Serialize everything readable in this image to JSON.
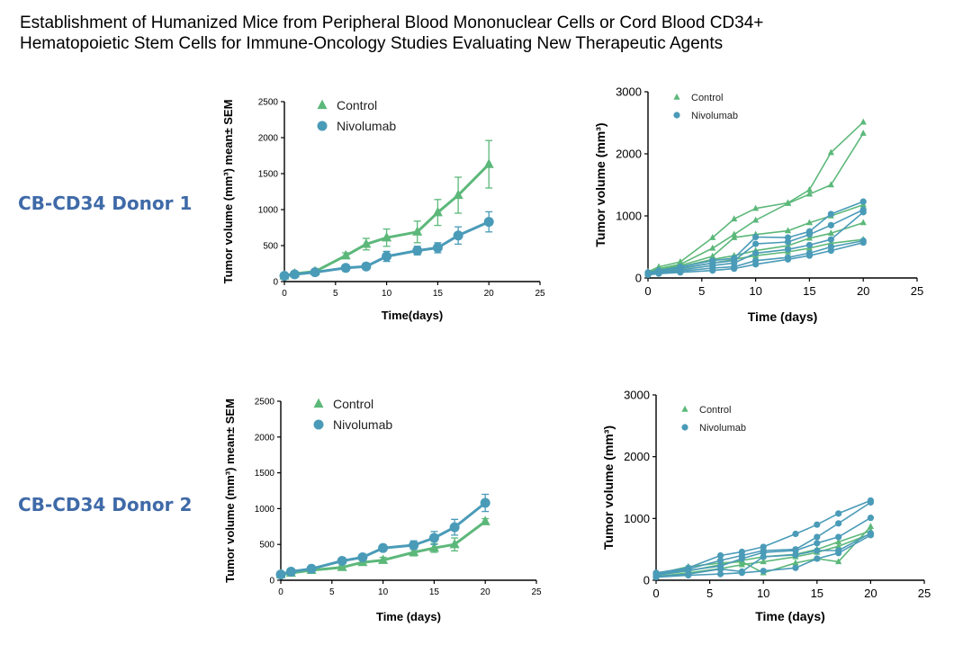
{
  "page": {
    "title_line1": "Establishment of Humanized Mice from Peripheral Blood Mononuclear Cells or Cord Blood CD34+",
    "title_line2": "Hematopoietic Stem Cells for Immune-Oncology Studies Evaluating New Therapeutic Agents",
    "donor1_label": "CB-CD34 Donor 1",
    "donor2_label": "CB-CD34 Donor 2"
  },
  "colors": {
    "control": "#5cb87a",
    "nivolumab": "#4a9bb8"
  },
  "chart_data": [
    {
      "id": "d1-mean",
      "type": "line",
      "title": "",
      "xlabel": "Time(days)",
      "ylabel": "Tumor volume (mm³) mean± SEM",
      "xlim": [
        0,
        25
      ],
      "ylim": [
        0,
        2500
      ],
      "xticks": [
        0,
        5,
        10,
        15,
        20,
        25
      ],
      "yticks": [
        0,
        500,
        1000,
        1500,
        2000,
        2500
      ],
      "legend_position": "top-left",
      "series": [
        {
          "name": "Control",
          "marker": "triangle",
          "x": [
            0,
            1,
            3,
            6,
            8,
            10,
            13,
            15,
            17,
            20
          ],
          "y": [
            80,
            110,
            140,
            360,
            520,
            610,
            690,
            960,
            1200,
            1630
          ],
          "err": [
            10,
            15,
            20,
            40,
            80,
            120,
            150,
            180,
            250,
            330
          ]
        },
        {
          "name": "Nivolumab",
          "marker": "circle",
          "x": [
            0,
            1,
            3,
            6,
            8,
            10,
            13,
            15,
            17,
            20
          ],
          "y": [
            80,
            100,
            130,
            190,
            210,
            350,
            430,
            470,
            640,
            830
          ],
          "err": [
            10,
            10,
            15,
            20,
            30,
            70,
            60,
            70,
            120,
            140
          ]
        }
      ]
    },
    {
      "id": "d1-indiv",
      "type": "line",
      "title": "",
      "xlabel": "Time  (days)",
      "ylabel": "Tumor volume (mm³)",
      "xlim": [
        0,
        25
      ],
      "ylim": [
        0,
        3000
      ],
      "xticks": [
        0,
        5,
        10,
        15,
        20,
        25
      ],
      "yticks": [
        0,
        1000,
        2000,
        3000
      ],
      "legend_position": "top-left",
      "series": [
        {
          "name": "Control",
          "marker": "triangle",
          "x": [
            0,
            1,
            3,
            6,
            8,
            10,
            13,
            15,
            17,
            20
          ],
          "y": [
            100,
            180,
            260,
            650,
            950,
            1120,
            1210,
            1420,
            2020,
            2510
          ]
        },
        {
          "name": "Control",
          "marker": "triangle",
          "x": [
            0,
            1,
            3,
            6,
            8,
            10,
            13,
            15,
            17,
            20
          ],
          "y": [
            90,
            150,
            220,
            480,
            700,
            930,
            1200,
            1350,
            1500,
            2330
          ]
        },
        {
          "name": "Control",
          "marker": "triangle",
          "x": [
            0,
            1,
            3,
            6,
            8,
            10,
            13,
            15,
            17,
            20
          ],
          "y": [
            80,
            130,
            200,
            350,
            650,
            700,
            760,
            890,
            1000,
            1180
          ]
        },
        {
          "name": "Control",
          "marker": "triangle",
          "x": [
            0,
            1,
            3,
            6,
            8,
            10,
            13,
            15,
            17,
            20
          ],
          "y": [
            70,
            120,
            180,
            300,
            360,
            440,
            520,
            640,
            720,
            890
          ]
        },
        {
          "name": "Control",
          "marker": "triangle",
          "x": [
            0,
            1,
            3,
            6,
            8,
            10,
            13,
            15,
            17,
            20
          ],
          "y": [
            60,
            100,
            150,
            240,
            300,
            360,
            420,
            480,
            560,
            620
          ]
        },
        {
          "name": "Nivolumab",
          "marker": "circle",
          "x": [
            0,
            1,
            3,
            6,
            8,
            10,
            13,
            15,
            17,
            20
          ],
          "y": [
            90,
            120,
            180,
            280,
            320,
            660,
            650,
            750,
            1030,
            1230
          ]
        },
        {
          "name": "Nivolumab",
          "marker": "circle",
          "x": [
            0,
            1,
            3,
            6,
            8,
            10,
            13,
            15,
            17,
            20
          ],
          "y": [
            80,
            110,
            160,
            240,
            280,
            550,
            580,
            700,
            850,
            1100
          ]
        },
        {
          "name": "Nivolumab",
          "marker": "circle",
          "x": [
            0,
            1,
            3,
            6,
            8,
            10,
            13,
            15,
            17,
            20
          ],
          "y": [
            70,
            90,
            130,
            200,
            240,
            400,
            460,
            530,
            620,
            1060
          ]
        },
        {
          "name": "Nivolumab",
          "marker": "circle",
          "x": [
            0,
            1,
            3,
            6,
            8,
            10,
            13,
            15,
            17,
            20
          ],
          "y": [
            60,
            80,
            110,
            160,
            180,
            280,
            330,
            400,
            500,
            600
          ]
        },
        {
          "name": "Nivolumab",
          "marker": "circle",
          "x": [
            0,
            1,
            3,
            6,
            8,
            10,
            13,
            15,
            17,
            20
          ],
          "y": [
            50,
            70,
            90,
            120,
            150,
            220,
            300,
            360,
            440,
            570
          ]
        }
      ]
    },
    {
      "id": "d2-mean",
      "type": "line",
      "title": "",
      "xlabel": "Time (days)",
      "ylabel": "Tumor volume (mm³) mean± SEM",
      "xlim": [
        0,
        25
      ],
      "ylim": [
        0,
        2500
      ],
      "xticks": [
        0,
        5,
        10,
        15,
        20,
        25
      ],
      "yticks": [
        0,
        500,
        1000,
        1500,
        2000,
        2500
      ],
      "legend_position": "top-left",
      "series": [
        {
          "name": "Control",
          "marker": "triangle",
          "x": [
            0,
            1,
            3,
            6,
            8,
            10,
            13,
            15,
            17,
            20
          ],
          "y": [
            80,
            100,
            140,
            180,
            250,
            280,
            390,
            450,
            500,
            820
          ],
          "err": [
            10,
            10,
            15,
            20,
            30,
            40,
            50,
            60,
            90,
            40
          ]
        },
        {
          "name": "Nivolumab",
          "marker": "circle",
          "x": [
            0,
            1,
            3,
            6,
            8,
            10,
            13,
            15,
            17,
            20
          ],
          "y": [
            80,
            120,
            160,
            270,
            320,
            450,
            490,
            590,
            740,
            1080
          ],
          "err": [
            10,
            10,
            15,
            30,
            40,
            30,
            60,
            90,
            110,
            120
          ]
        }
      ]
    },
    {
      "id": "d2-indiv",
      "type": "line",
      "title": "",
      "xlabel": "Time (days)",
      "ylabel": "Tumor volume (mm³)",
      "xlim": [
        0,
        25
      ],
      "ylim": [
        0,
        3000
      ],
      "xticks": [
        0,
        5,
        10,
        15,
        20,
        25
      ],
      "yticks": [
        0,
        1000,
        2000,
        3000
      ],
      "legend_position": "top-left",
      "series": [
        {
          "name": "Control",
          "marker": "triangle",
          "x": [
            0,
            3,
            6,
            8,
            10,
            13,
            15,
            17,
            20
          ],
          "y": [
            100,
            220,
            280,
            300,
            120,
            280,
            350,
            300,
            870
          ]
        },
        {
          "name": "Control",
          "marker": "triangle",
          "x": [
            0,
            3,
            6,
            8,
            10,
            13,
            15,
            17,
            20
          ],
          "y": [
            80,
            150,
            250,
            320,
            380,
            420,
            500,
            620,
            800
          ]
        },
        {
          "name": "Control",
          "marker": "triangle",
          "x": [
            0,
            3,
            6,
            8,
            10,
            13,
            15,
            17,
            20
          ],
          "y": [
            60,
            120,
            190,
            250,
            300,
            380,
            450,
            550,
            750
          ]
        },
        {
          "name": "Nivolumab",
          "marker": "circle",
          "x": [
            0,
            3,
            6,
            8,
            10,
            13,
            15,
            17,
            20
          ],
          "y": [
            120,
            200,
            400,
            460,
            540,
            750,
            900,
            1080,
            1290
          ]
        },
        {
          "name": "Nivolumab",
          "marker": "circle",
          "x": [
            0,
            3,
            6,
            8,
            10,
            13,
            15,
            17,
            20
          ],
          "y": [
            100,
            180,
            320,
            400,
            480,
            500,
            700,
            920,
            1260
          ]
        },
        {
          "name": "Nivolumab",
          "marker": "circle",
          "x": [
            0,
            3,
            6,
            8,
            10,
            13,
            15,
            17,
            20
          ],
          "y": [
            80,
            160,
            230,
            350,
            450,
            480,
            600,
            700,
            1010
          ]
        },
        {
          "name": "Nivolumab",
          "marker": "circle",
          "x": [
            0,
            3,
            6,
            8,
            10,
            13,
            15,
            17,
            20
          ],
          "y": [
            60,
            100,
            180,
            140,
            380,
            410,
            480,
            480,
            760
          ]
        },
        {
          "name": "Nivolumab",
          "marker": "circle",
          "x": [
            0,
            3,
            6,
            8,
            10,
            13,
            15,
            17,
            20
          ],
          "y": [
            50,
            80,
            100,
            120,
            150,
            200,
            350,
            440,
            730
          ]
        }
      ]
    }
  ]
}
